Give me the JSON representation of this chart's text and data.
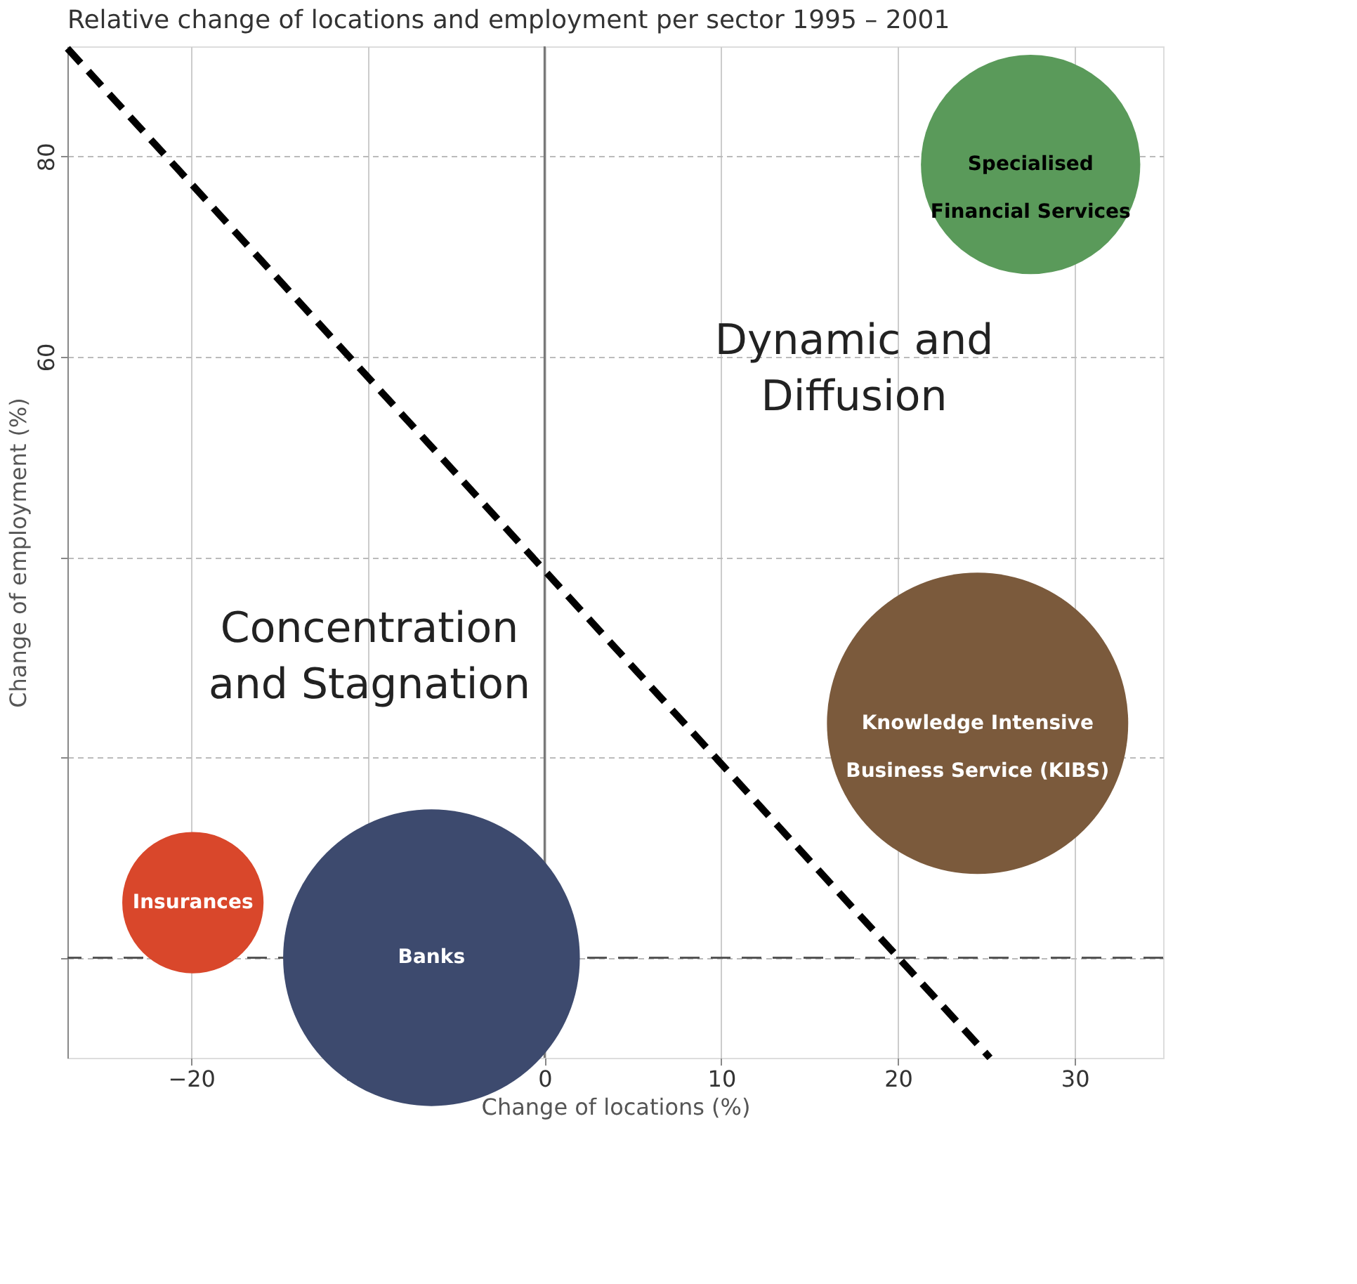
{
  "chart_data": {
    "type": "bubble",
    "title": "Relative change of locations and employment per sector 1995 – 2001",
    "xlabel": "Change of locations (%)",
    "ylabel": "Change of employment (%)",
    "xlim": [
      -27,
      35
    ],
    "xticks": [
      -20,
      -10,
      0,
      10,
      20,
      30
    ],
    "ylim": [
      -10,
      91
    ],
    "yticks": [
      {
        "value": 0,
        "label": null
      },
      {
        "value": 20,
        "label": null
      },
      {
        "value": 40,
        "label": null
      },
      60,
      80
    ],
    "grid": true,
    "series": [
      {
        "name": "Insurances",
        "color": "#d9472b",
        "x": [
          -19.9
        ],
        "values": [
          5.5
        ],
        "sizes": [
          0.22
        ]
      },
      {
        "name": "Banks",
        "color": "#3d4a6e",
        "x": [
          -6.4
        ],
        "values": [
          0
        ],
        "sizes": [
          0.97
        ]
      },
      {
        "name": "Knowledge Intensive\nBusiness Service (KIBS)",
        "color": "#7b5a3c",
        "x": [
          24.5
        ],
        "values": [
          23.4
        ],
        "sizes": [
          1
        ]
      },
      {
        "name": "Specialised\nFinancial Services",
        "color": "#5a9a5a",
        "x": [
          27.5
        ],
        "values": [
          79.2
        ],
        "sizes": [
          0.53
        ]
      },
      {
        "type": "line",
        "color": "#000000",
        "line_style": "dashed",
        "marker": "none",
        "x": [
          -27,
          25.2
        ],
        "values": [
          90.8,
          -10
        ]
      }
    ],
    "ref_lines": [
      {
        "axis": "x",
        "value": 0,
        "color": "#777777",
        "line_style": "solid"
      },
      {
        "axis": "y",
        "value": 0,
        "color": "#555555",
        "line_style": "dashed"
      }
    ],
    "annotations": [
      "Dynamic and\nDiffusion",
      "Concentration\nand Stagnation"
    ]
  }
}
